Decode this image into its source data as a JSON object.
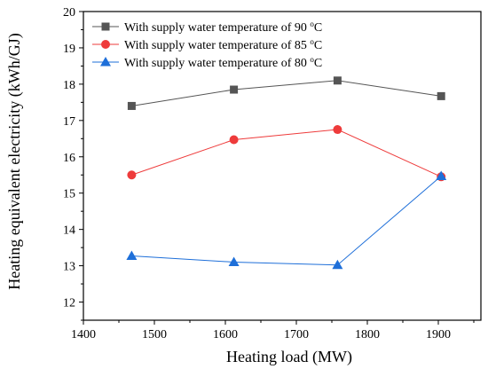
{
  "chart_data": {
    "type": "line",
    "title": "",
    "xlabel": "Heating load (MW)",
    "ylabel": "Heating equivalent electricity (kWh/GJ)",
    "xlim": [
      1400,
      1960
    ],
    "ylim": [
      11.5,
      20
    ],
    "xticks": [
      1400,
      1500,
      1600,
      1700,
      1800,
      1900
    ],
    "yticks": [
      12,
      13,
      14,
      15,
      16,
      17,
      18,
      19,
      20
    ],
    "grid": false,
    "legend_position": "top-left",
    "x": [
      1468,
      1612,
      1758,
      1904
    ],
    "series": [
      {
        "name": "With supply water temperature of 90 °C",
        "label_main": "With supply water temperature of 90 ",
        "label_sup": "o",
        "label_unit": "C",
        "values": [
          17.4,
          17.85,
          18.1,
          17.67
        ],
        "color": "#555555",
        "marker": "square"
      },
      {
        "name": "With supply water temperature of 85 °C",
        "label_main": "With supply water temperature of 85 ",
        "label_sup": "o",
        "label_unit": "C",
        "values": [
          15.5,
          16.47,
          16.75,
          15.45
        ],
        "color": "#ee3b3b",
        "marker": "circle"
      },
      {
        "name": "With supply water temperature of 80 °C",
        "label_main": "With supply water temperature of 80 ",
        "label_sup": "o",
        "label_unit": "C",
        "values": [
          13.27,
          13.1,
          13.02,
          15.47
        ],
        "color": "#1e6fd9",
        "marker": "triangle"
      }
    ]
  }
}
